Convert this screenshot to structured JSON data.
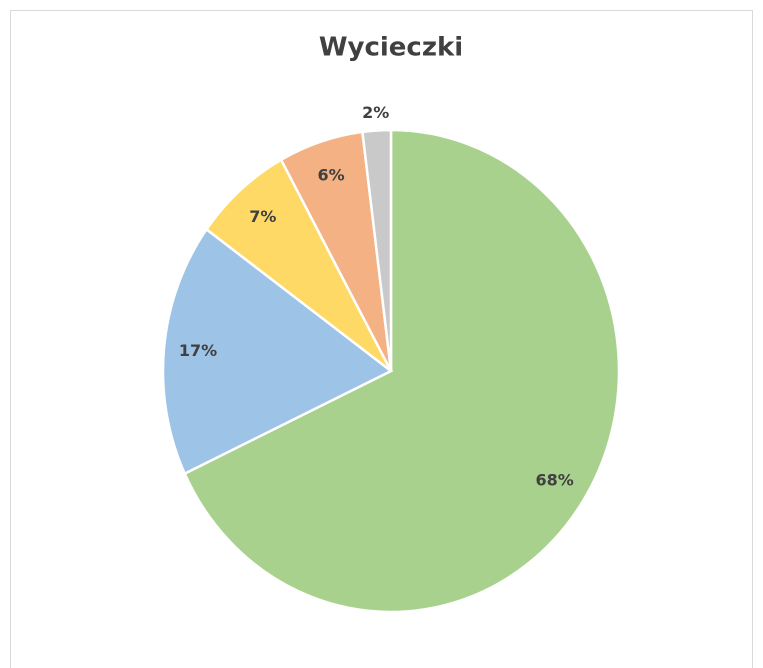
{
  "chart_data": {
    "type": "pie",
    "title": "Wycieczki",
    "values": [
      68,
      17,
      7,
      6,
      2
    ],
    "value_labels": [
      "68%",
      "17%",
      "7%",
      "6%",
      "2%"
    ],
    "colors": [
      "#a9d18e",
      "#9dc3e6",
      "#ffd966",
      "#f4b183",
      "#c9c9c9"
    ]
  }
}
